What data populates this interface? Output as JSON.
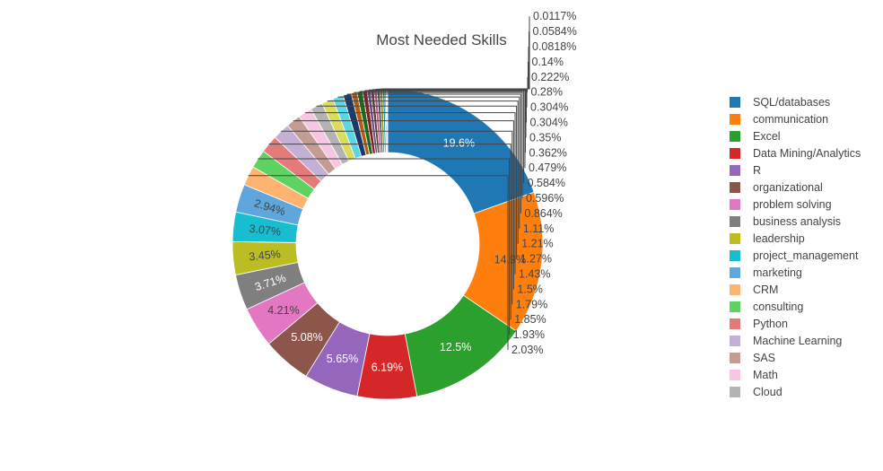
{
  "chart_data": {
    "type": "pie",
    "hole": true,
    "title": "Most Needed Skills",
    "legend_position": "right",
    "slices": [
      {
        "label": "SQL/databases",
        "value": 19.6,
        "color": "#1f77b4"
      },
      {
        "label": "communication",
        "value": 14.9,
        "color": "#ff7f0e"
      },
      {
        "label": "Excel",
        "value": 12.5,
        "color": "#2ca02c"
      },
      {
        "label": "Data Mining/Analytics",
        "value": 6.19,
        "color": "#d62728"
      },
      {
        "label": "R",
        "value": 5.65,
        "color": "#9467bd"
      },
      {
        "label": "organizational",
        "value": 5.08,
        "color": "#8c564b"
      },
      {
        "label": "problem solving",
        "value": 4.21,
        "color": "#e377c2"
      },
      {
        "label": "business analysis",
        "value": 3.71,
        "color": "#7f7f7f"
      },
      {
        "label": "leadership",
        "value": 3.45,
        "color": "#bcbd22"
      },
      {
        "label": "project_management",
        "value": 3.07,
        "color": "#17becf"
      },
      {
        "label": "marketing",
        "value": 2.94,
        "color": "#5fa6dc"
      },
      {
        "label": "CRM",
        "value": 2.03,
        "color": "#ffb370"
      },
      {
        "label": "consulting",
        "value": 1.93,
        "color": "#5fd35f"
      },
      {
        "label": "Python",
        "value": 1.85,
        "color": "#e47b7b"
      },
      {
        "label": "Machine Learning",
        "value": 1.79,
        "color": "#c5b0d5"
      },
      {
        "label": "SAS",
        "value": 1.5,
        "color": "#c49c94"
      },
      {
        "label": "Math",
        "value": 1.43,
        "color": "#f7c6e2"
      },
      {
        "label": "Cloud",
        "value": 1.27,
        "color": "#b3b3b3"
      },
      {
        "label": "",
        "value": 1.21,
        "color": "#dbdb5c"
      },
      {
        "label": "",
        "value": 1.11,
        "color": "#5ad7e6"
      },
      {
        "label": "",
        "value": 0.864,
        "color": "#1a3a6b"
      },
      {
        "label": "",
        "value": 0.596,
        "color": "#b35e0b"
      },
      {
        "label": "",
        "value": 0.584,
        "color": "#1d6b1d"
      },
      {
        "label": "",
        "value": 0.479,
        "color": "#8e1b1c"
      },
      {
        "label": "",
        "value": 0.362,
        "color": "#6a4a8c"
      },
      {
        "label": "",
        "value": 0.35,
        "color": "#633c35"
      },
      {
        "label": "",
        "value": 0.304,
        "color": "#b5548f"
      },
      {
        "label": "",
        "value": 0.304,
        "color": "#555555"
      },
      {
        "label": "",
        "value": 0.28,
        "color": "#8a8a18"
      },
      {
        "label": "",
        "value": 0.222,
        "color": "#118c99"
      },
      {
        "label": "",
        "value": 0.14,
        "color": "#3b6e94"
      },
      {
        "label": "",
        "value": 0.0818,
        "color": "#c7761b"
      },
      {
        "label": "",
        "value": 0.0584,
        "color": "#2f7d2f"
      },
      {
        "label": "",
        "value": 0.0117,
        "color": "#9b2a2a"
      }
    ],
    "outside_labels": [
      "2.03%",
      "1.93%",
      "1.85%",
      "1.79%",
      "1.5%",
      "1.43%",
      "1.27%",
      "1.21%",
      "1.11%",
      "0.864%",
      "0.596%",
      "0.584%",
      "0.479%",
      "0.362%",
      "0.35%",
      "0.304%",
      "0.304%",
      "0.28%",
      "0.222%",
      "0.14%",
      "0.0818%",
      "0.0584%",
      "0.0117%"
    ]
  }
}
